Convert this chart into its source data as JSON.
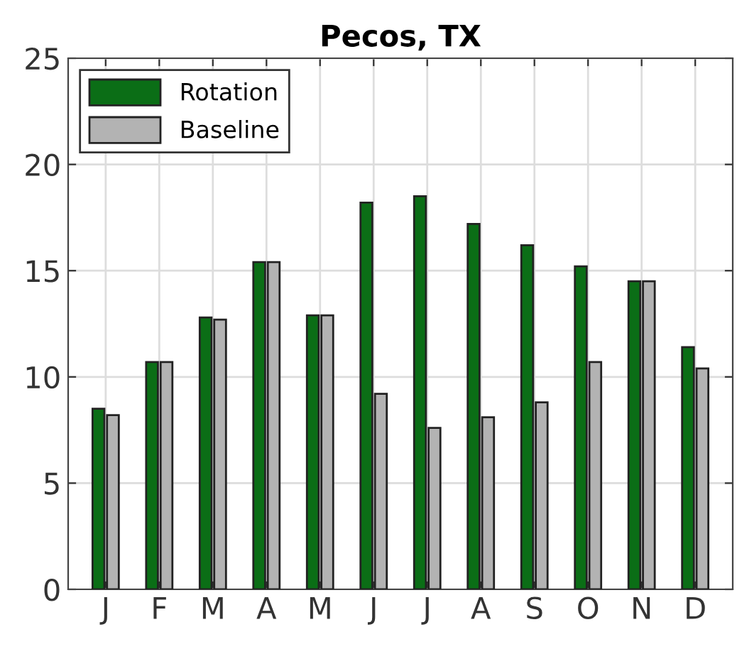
{
  "chart_data": {
    "type": "bar",
    "title": "Pecos, TX",
    "categories": [
      "J",
      "F",
      "M",
      "A",
      "M",
      "J",
      "J",
      "A",
      "S",
      "O",
      "N",
      "D"
    ],
    "series": [
      {
        "name": "Rotation",
        "color": "#0b6e16",
        "values": [
          8.5,
          10.7,
          12.8,
          15.4,
          12.9,
          18.2,
          18.5,
          17.2,
          16.2,
          15.2,
          14.5,
          11.4
        ]
      },
      {
        "name": "Baseline",
        "color": "#b3b3b3",
        "values": [
          8.2,
          10.7,
          12.7,
          15.4,
          12.9,
          9.2,
          7.6,
          8.1,
          8.8,
          10.7,
          14.5,
          10.4
        ]
      }
    ],
    "ylim": [
      0,
      25
    ],
    "yticks": [
      0,
      5,
      10,
      15,
      20,
      25
    ],
    "grid": true,
    "legend": "top left"
  }
}
